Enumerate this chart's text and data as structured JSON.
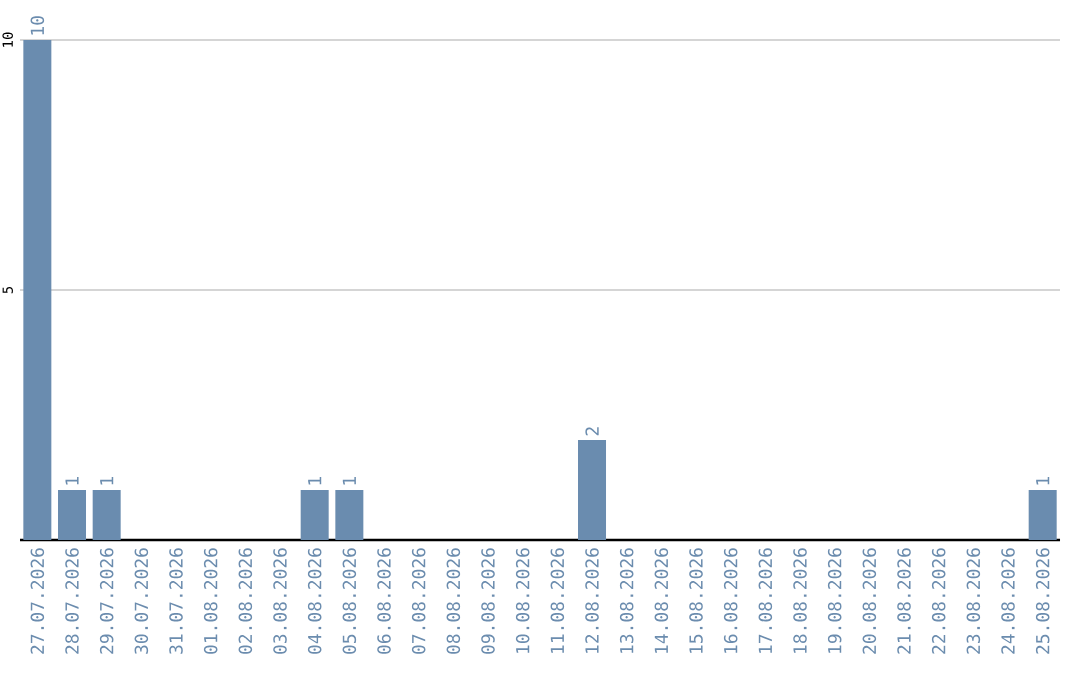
{
  "chart_data": {
    "type": "bar",
    "categories": [
      "27.07.2026",
      "28.07.2026",
      "29.07.2026",
      "30.07.2026",
      "31.07.2026",
      "01.08.2026",
      "02.08.2026",
      "03.08.2026",
      "04.08.2026",
      "05.08.2026",
      "06.08.2026",
      "07.08.2026",
      "08.08.2026",
      "09.08.2026",
      "10.08.2026",
      "11.08.2026",
      "12.08.2026",
      "13.08.2026",
      "14.08.2026",
      "15.08.2026",
      "16.08.2026",
      "17.08.2026",
      "18.08.2026",
      "19.08.2026",
      "20.08.2026",
      "21.08.2026",
      "22.08.2026",
      "23.08.2026",
      "24.08.2026",
      "25.08.2026"
    ],
    "values": [
      10,
      1,
      1,
      0,
      0,
      0,
      0,
      0,
      1,
      1,
      0,
      0,
      0,
      0,
      0,
      0,
      2,
      0,
      0,
      0,
      0,
      0,
      0,
      0,
      0,
      0,
      0,
      0,
      0,
      1
    ],
    "value_labels": [
      "10",
      "1",
      "1",
      null,
      null,
      null,
      null,
      null,
      "1",
      "1",
      null,
      null,
      null,
      null,
      null,
      null,
      "2",
      null,
      null,
      null,
      null,
      null,
      null,
      null,
      null,
      null,
      null,
      null,
      null,
      "1"
    ],
    "color": "#6a8caf",
    "ylim": [
      0,
      10
    ],
    "yticks": [
      5,
      10
    ],
    "grid": "y"
  }
}
